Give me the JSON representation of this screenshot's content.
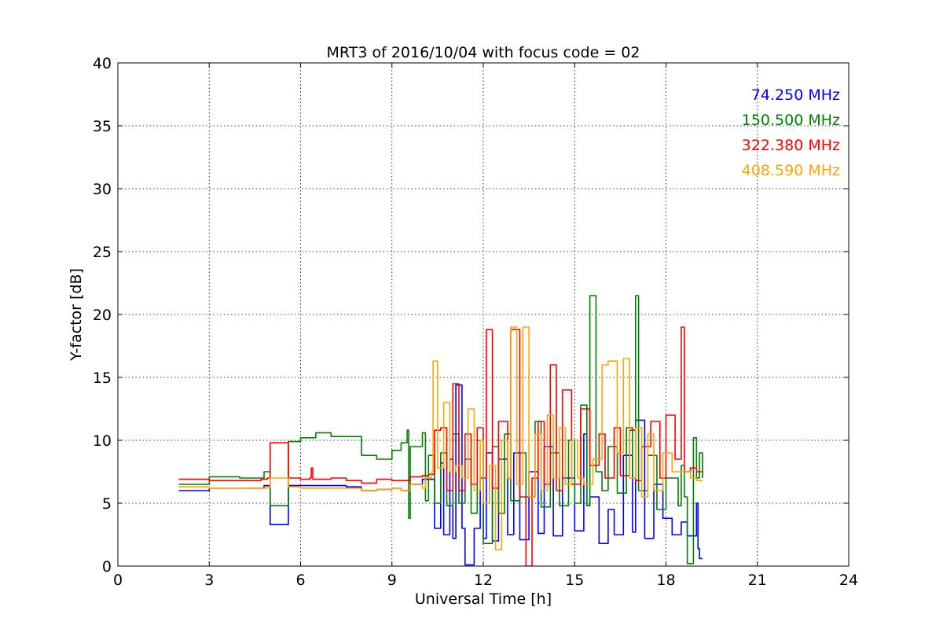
{
  "chart_data": {
    "type": "line",
    "title": "MRT3 of 2016/10/04 with focus code = 02",
    "xlabel": "Universal Time [h]",
    "ylabel": "Y-factor [dB]",
    "xlim": [
      0,
      24
    ],
    "ylim": [
      0,
      40
    ],
    "xticks": [
      0,
      3,
      6,
      9,
      12,
      15,
      18,
      21,
      24
    ],
    "yticks": [
      0,
      5,
      10,
      15,
      20,
      25,
      30,
      35,
      40
    ],
    "grid": true,
    "legend_position": "top-right",
    "series": [
      {
        "name": "74.250 MHz",
        "color": "#0000ff",
        "x": [
          2.0,
          2.8,
          3.0,
          4.7,
          4.8,
          4.9,
          5.0,
          5.5,
          5.6,
          6.5,
          7.5,
          8.0,
          8.5,
          9.0,
          9.3,
          9.6,
          10.0,
          10.3,
          10.4,
          10.6,
          10.7,
          10.9,
          11.0,
          11.1,
          11.3,
          11.4,
          11.7,
          11.9,
          12.0,
          12.1,
          12.3,
          12.5,
          12.8,
          13.0,
          13.2,
          13.5,
          13.8,
          14.0,
          14.3,
          14.6,
          15.0,
          15.3,
          15.4,
          15.5,
          15.8,
          16.1,
          16.3,
          16.6,
          16.9,
          17.0,
          17.3,
          17.6,
          17.9,
          18.2,
          18.5,
          18.7,
          18.9,
          19.0,
          19.05,
          19.1,
          19.2
        ],
        "y": [
          6.0,
          6.0,
          6.2,
          6.2,
          6.4,
          6.4,
          3.3,
          3.3,
          6.4,
          6.4,
          6.3,
          6.0,
          6.1,
          6.2,
          6.0,
          6.5,
          6.9,
          6.9,
          3.0,
          8.2,
          2.5,
          8.5,
          2.2,
          14.4,
          3.0,
          0.1,
          3.0,
          7.0,
          2.2,
          9.0,
          2.0,
          8.5,
          2.5,
          9.0,
          2.1,
          7.5,
          2.6,
          9.5,
          2.4,
          7.0,
          2.8,
          10.5,
          4.8,
          5.5,
          1.8,
          4.5,
          2.5,
          8.8,
          2.7,
          11.6,
          2.2,
          6.5,
          3.8,
          2.5,
          3.5,
          2.4,
          2.4,
          5.0,
          1.4,
          0.6,
          0.6
        ]
      },
      {
        "name": "150.500 MHz",
        "color": "#008000",
        "x": [
          2.0,
          2.8,
          3.0,
          4.0,
          4.8,
          4.9,
          5.0,
          5.5,
          5.6,
          6.0,
          6.5,
          7.0,
          7.5,
          8.0,
          8.5,
          9.0,
          9.3,
          9.5,
          9.55,
          9.6,
          10.0,
          10.1,
          10.2,
          10.4,
          10.6,
          10.8,
          11.0,
          11.2,
          11.4,
          11.6,
          11.8,
          12.0,
          12.3,
          12.5,
          12.7,
          12.9,
          13.2,
          13.4,
          13.7,
          13.9,
          14.2,
          14.5,
          14.8,
          15.0,
          15.2,
          15.4,
          15.5,
          15.6,
          15.7,
          15.9,
          16.1,
          16.4,
          16.7,
          16.9,
          17.0,
          17.1,
          17.4,
          17.7,
          18.0,
          18.4,
          18.5,
          18.6,
          18.7,
          18.8,
          18.9,
          19.0,
          19.1,
          19.2
        ],
        "y": [
          6.5,
          6.5,
          7.1,
          7.0,
          7.5,
          7.5,
          4.8,
          4.8,
          9.9,
          10.2,
          10.6,
          10.3,
          10.3,
          8.8,
          8.5,
          9.2,
          9.8,
          10.8,
          3.8,
          9.5,
          10.6,
          5.2,
          8.8,
          5.0,
          9.0,
          4.8,
          10.5,
          5.0,
          8.5,
          4.2,
          10.0,
          1.8,
          9.5,
          4.2,
          10.5,
          5.2,
          9.0,
          5.5,
          11.5,
          4.7,
          9.0,
          4.8,
          10.0,
          5.0,
          12.8,
          4.8,
          21.5,
          21.5,
          7.5,
          6.0,
          9.5,
          5.8,
          11.0,
          7.0,
          21.5,
          6.0,
          8.8,
          4.5,
          7.0,
          4.8,
          8.0,
          5.5,
          0.2,
          0.2,
          10.2,
          7.0,
          9.0,
          7.0
        ]
      },
      {
        "name": "322.380 MHz",
        "color": "#ff0000",
        "x": [
          2.0,
          3.0,
          4.7,
          4.9,
          5.0,
          5.5,
          5.6,
          6.0,
          6.3,
          6.35,
          6.4,
          7.0,
          7.5,
          8.0,
          8.5,
          9.0,
          9.3,
          9.6,
          10.0,
          10.2,
          10.4,
          10.6,
          10.8,
          11.0,
          11.2,
          11.4,
          11.6,
          11.8,
          12.0,
          12.1,
          12.3,
          12.5,
          12.8,
          12.9,
          13.2,
          13.4,
          13.6,
          13.8,
          14.0,
          14.2,
          14.4,
          14.6,
          14.9,
          15.2,
          15.5,
          15.8,
          16.0,
          16.3,
          16.5,
          16.8,
          17.0,
          17.2,
          17.5,
          17.8,
          18.0,
          18.3,
          18.5,
          18.6,
          18.8,
          19.0,
          19.2
        ],
        "y": [
          6.9,
          6.8,
          6.9,
          7.0,
          9.8,
          9.8,
          7.0,
          6.9,
          7.0,
          7.8,
          6.9,
          7.0,
          6.8,
          6.6,
          6.9,
          6.8,
          6.8,
          7.1,
          7.2,
          7.3,
          10.8,
          11.0,
          6.0,
          14.5,
          6.0,
          10.5,
          6.5,
          11.0,
          7.0,
          18.8,
          6.2,
          11.5,
          7.0,
          18.8,
          5.5,
          0.0,
          7.0,
          11.5,
          6.5,
          16.0,
          6.0,
          14.0,
          6.5,
          12.5,
          8.0,
          10.5,
          7.0,
          11.0,
          7.2,
          10.8,
          6.8,
          9.5,
          11.5,
          7.0,
          12.0,
          8.5,
          19.0,
          7.5,
          7.8,
          7.5,
          7.5
        ]
      },
      {
        "name": "408.590 MHz",
        "color": "#ffa500",
        "x": [
          2.0,
          3.0,
          4.9,
          5.0,
          5.5,
          5.6,
          6.0,
          7.0,
          8.0,
          8.5,
          9.0,
          9.3,
          9.6,
          10.0,
          10.1,
          10.3,
          10.35,
          10.5,
          10.7,
          10.9,
          11.1,
          11.3,
          11.5,
          11.7,
          11.9,
          12.0,
          12.2,
          12.4,
          12.6,
          12.8,
          12.9,
          13.1,
          13.3,
          13.5,
          13.7,
          13.9,
          14.1,
          14.3,
          14.5,
          14.7,
          14.9,
          15.1,
          15.3,
          15.6,
          15.9,
          16.1,
          16.4,
          16.6,
          16.8,
          17.0,
          17.2,
          17.4,
          17.6,
          17.9,
          18.2,
          18.5,
          18.8,
          19.0,
          19.2
        ],
        "y": [
          6.3,
          6.2,
          6.3,
          7.0,
          7.0,
          6.3,
          6.2,
          6.2,
          6.0,
          6.1,
          6.2,
          6.0,
          6.5,
          6.2,
          7.0,
          7.5,
          16.3,
          7.8,
          13.0,
          7.5,
          8.0,
          7.0,
          12.5,
          6.0,
          10.0,
          5.0,
          8.0,
          1.3,
          10.0,
          7.0,
          19.0,
          6.5,
          19.0,
          5.5,
          10.5,
          6.0,
          12.0,
          7.0,
          11.0,
          6.5,
          10.0,
          7.0,
          6.5,
          8.5,
          16.0,
          16.3,
          9.0,
          16.5,
          7.0,
          11.0,
          5.5,
          10.5,
          6.0,
          9.0,
          7.5,
          7.5,
          7.0,
          6.8,
          6.8
        ]
      }
    ]
  }
}
